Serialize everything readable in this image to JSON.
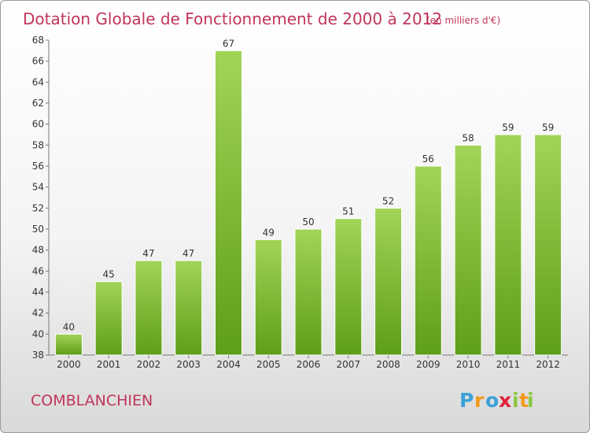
{
  "chart_data": {
    "type": "bar",
    "title": "Dotation Globale de Fonctionnement de 2000 à 2012",
    "subtitle": "(en milliers d'€)",
    "categories": [
      "2000",
      "2001",
      "2002",
      "2003",
      "2004",
      "2005",
      "2006",
      "2007",
      "2008",
      "2009",
      "2010",
      "2011",
      "2012"
    ],
    "values": [
      40,
      45,
      47,
      47,
      67,
      49,
      50,
      51,
      52,
      56,
      58,
      59,
      59
    ],
    "ylim": [
      38,
      68
    ],
    "yticks": [
      38,
      40,
      42,
      44,
      46,
      48,
      50,
      52,
      54,
      56,
      58,
      60,
      62,
      64,
      66,
      68
    ],
    "grid": false,
    "bar_color": "#7bbf2e"
  },
  "footer": {
    "commune": "COMBLANCHIEN",
    "logo_letters": [
      "P",
      "r",
      "o",
      "x",
      "i",
      "t",
      "i"
    ],
    "logo_colors": [
      "#3aa0d8",
      "#f39a1e",
      "#3aa0d8",
      "#e2233a",
      "#8cc63f",
      "#f39a1e",
      "#8cc63f"
    ]
  }
}
